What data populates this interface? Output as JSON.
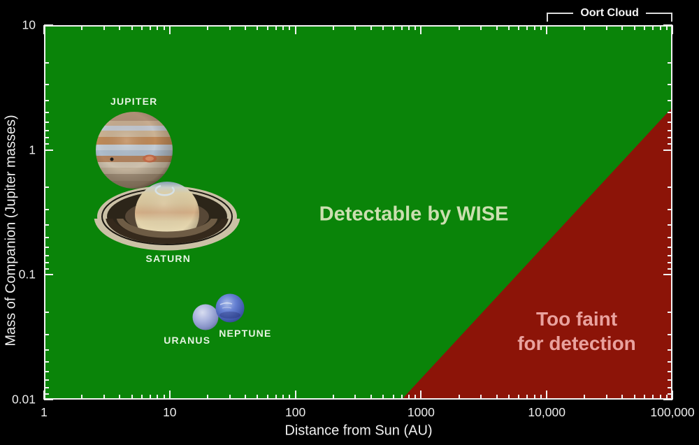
{
  "window": {
    "background_color": "#000000",
    "plot_background_color": "#0a8409"
  },
  "chart_data": {
    "type": "scatter",
    "x_scale": "log",
    "y_scale": "log",
    "xlim": [
      1,
      100000
    ],
    "ylim": [
      0.01,
      10
    ],
    "xlabel": "Distance from Sun (AU)",
    "ylabel": "Mass of Companion (Jupiter masses)",
    "x_tick_labels": [
      "1",
      "10",
      "100",
      "1000",
      "10,000",
      "100,000"
    ],
    "y_tick_labels": [
      "10",
      "1",
      "0.1",
      "0.01"
    ],
    "grid": false,
    "points": [
      {
        "name": "JUPITER",
        "distance_au": 5.2,
        "mass_mjup": 1.0
      },
      {
        "name": "SATURN",
        "distance_au": 9.5,
        "mass_mjup": 0.3
      },
      {
        "name": "URANUS",
        "distance_au": 19.2,
        "mass_mjup": 0.046
      },
      {
        "name": "NEPTUNE",
        "distance_au": 30.1,
        "mass_mjup": 0.054
      }
    ],
    "regions": [
      {
        "name": "detectable",
        "label": "Detectable by WISE",
        "color": "#0a8409",
        "label_color": "#cbdfb0"
      },
      {
        "name": "too_faint",
        "label": "Too faint for detection",
        "label_lines": [
          "Too faint",
          "for detection"
        ],
        "color": "#8c1408",
        "label_color": "#e9a29e",
        "boundary_points": [
          {
            "distance_au": 700,
            "mass_mjup": 0.01
          },
          {
            "distance_au": 100000,
            "mass_mjup": 2.2
          }
        ]
      }
    ],
    "annotations": [
      {
        "label": "Oort Cloud",
        "distance_span_au": [
          10000,
          100000
        ]
      }
    ],
    "tick_color": "#f2f2f2",
    "axis_border_color": "#f2f2f2"
  }
}
